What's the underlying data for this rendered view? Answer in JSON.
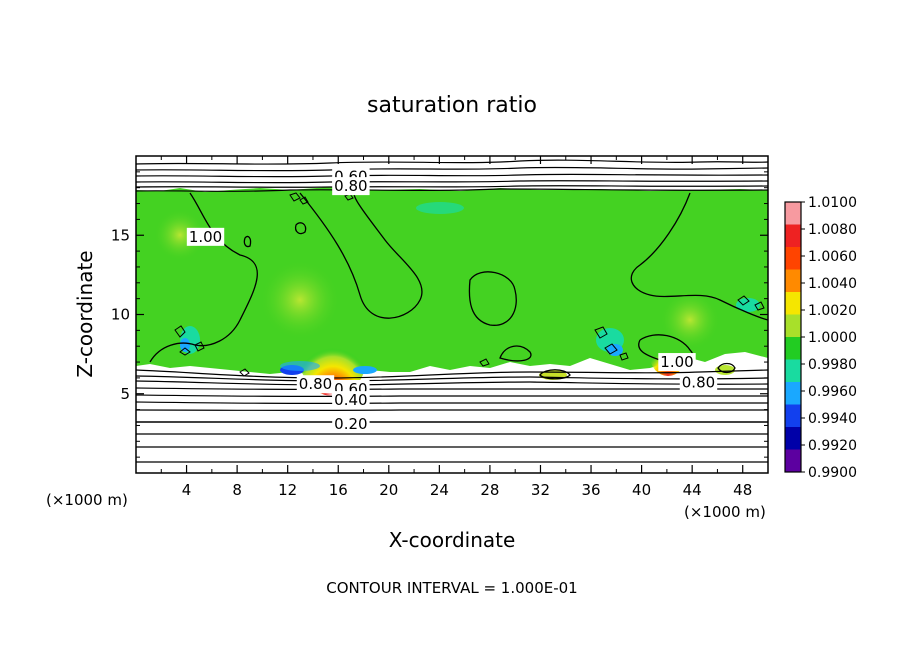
{
  "chart_data": {
    "type": "heatmap",
    "title": "saturation ratio",
    "xlabel": "X-coordinate",
    "ylabel": "Z-coordinate",
    "x_unit_label": "(×1000 m)",
    "y_unit_label": "(×1000 m)",
    "xlim": [
      0,
      50
    ],
    "ylim": [
      0,
      20
    ],
    "x_ticks": [
      4,
      8,
      12,
      16,
      20,
      24,
      28,
      32,
      36,
      40,
      44,
      48
    ],
    "y_ticks": [
      5,
      10,
      15
    ],
    "footer": "CONTOUR INTERVAL = 1.000E-01",
    "colorbar": {
      "labels": [
        "1.0100",
        "1.0080",
        "1.0060",
        "1.0040",
        "1.0020",
        "1.0000",
        "0.9980",
        "0.9960",
        "0.9940",
        "0.9920",
        "0.9900"
      ],
      "colors": [
        "#f79aa0",
        "#ee2222",
        "#ff4400",
        "#ff8a00",
        "#f5e600",
        "#a8e02a",
        "#22cc22",
        "#19dba0",
        "#1aa8ff",
        "#1240ee",
        "#0000a8",
        "#5c00a0"
      ]
    },
    "contour_labels": [
      {
        "text": "0.60",
        "x": 17.0,
        "z": 18.7
      },
      {
        "text": "0.80",
        "x": 17.0,
        "z": 18.1
      },
      {
        "text": "1.00",
        "x": 5.5,
        "z": 14.9
      },
      {
        "text": "1.00",
        "x": 42.8,
        "z": 7.0
      },
      {
        "text": "0.80",
        "x": 14.2,
        "z": 5.6
      },
      {
        "text": "0.60",
        "x": 17.0,
        "z": 5.3
      },
      {
        "text": "0.80",
        "x": 44.5,
        "z": 5.7
      },
      {
        "text": "0.40",
        "x": 17.0,
        "z": 4.6
      },
      {
        "text": "0.20",
        "x": 17.0,
        "z": 3.1
      }
    ]
  }
}
